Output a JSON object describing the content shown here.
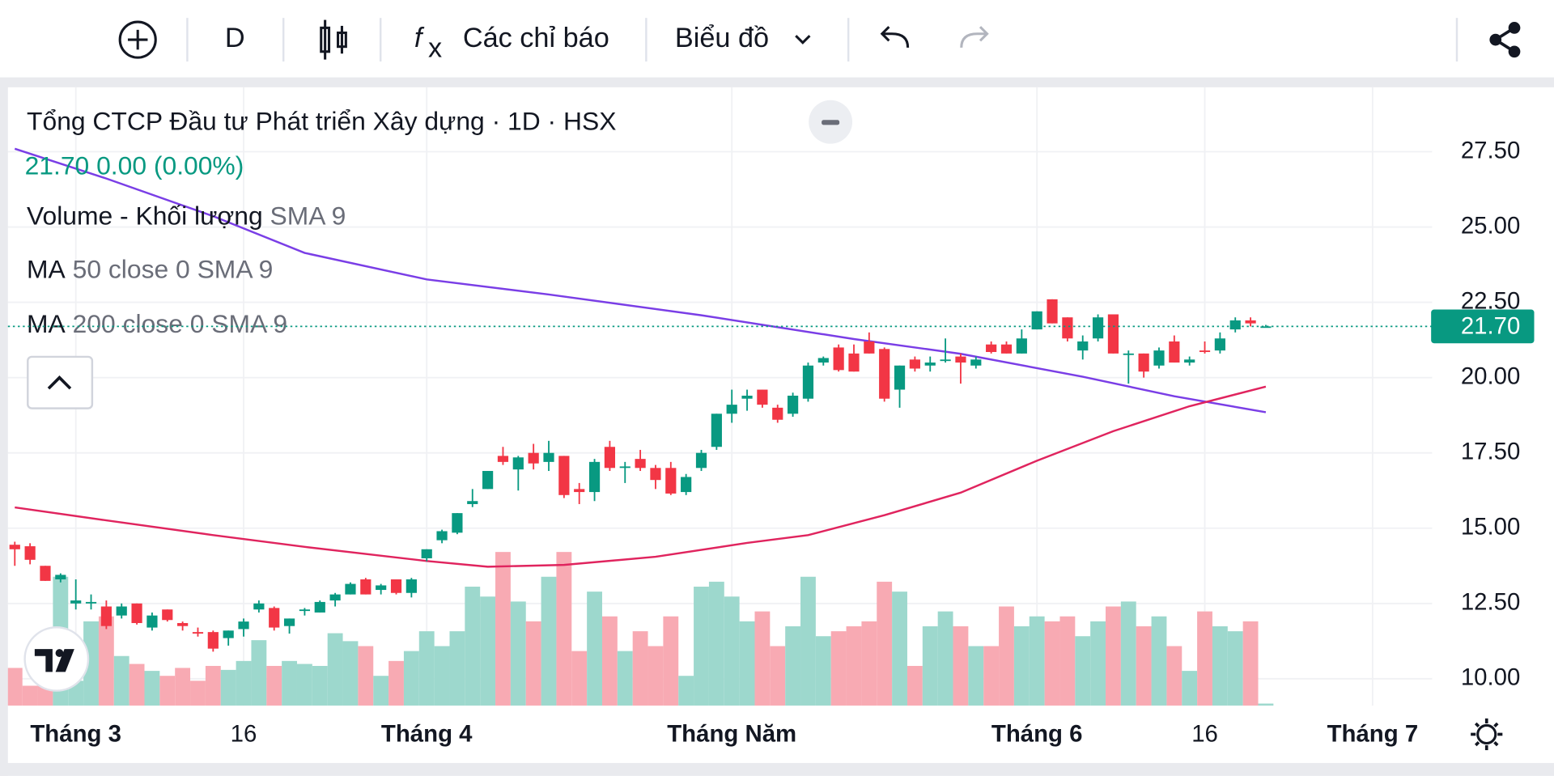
{
  "toolbar": {
    "interval": "D",
    "indicators": "Các chỉ báo",
    "chart_menu": "Biểu đồ"
  },
  "chart_data": {
    "type": "candlestick",
    "title": "Tổng CTCP Đầu tư Phát triển Xây dựng · 1D · HSX",
    "status": "21.70 0.00 (0.00%)",
    "legend_items": [
      {
        "name": "Volume - Khối lượng",
        "params": "SMA 9"
      },
      {
        "name": "MA",
        "params": "50 close 0 SMA 9"
      },
      {
        "name": "MA",
        "params": "200 close 0 SMA 9"
      }
    ],
    "up_color": "#089981",
    "down_color": "#f23645",
    "ohlc": [
      [
        14.45,
        14.55,
        13.75,
        14.3
      ],
      [
        14.4,
        14.5,
        13.8,
        13.95
      ],
      [
        13.75,
        13.75,
        13.25,
        13.25
      ],
      [
        13.3,
        13.5,
        13.2,
        13.45
      ],
      [
        12.5,
        13.3,
        12.3,
        12.6
      ],
      [
        12.5,
        12.8,
        12.3,
        12.55
      ],
      [
        12.4,
        12.6,
        11.65,
        11.75
      ],
      [
        12.1,
        12.5,
        12.0,
        12.4
      ],
      [
        12.5,
        12.5,
        11.8,
        11.85
      ],
      [
        11.7,
        12.2,
        11.6,
        12.1
      ],
      [
        12.3,
        12.3,
        11.9,
        11.95
      ],
      [
        11.85,
        11.9,
        11.6,
        11.75
      ],
      [
        11.55,
        11.7,
        11.4,
        11.5
      ],
      [
        11.55,
        11.6,
        10.9,
        11.0
      ],
      [
        11.35,
        11.6,
        11.1,
        11.6
      ],
      [
        11.65,
        12.0,
        11.4,
        11.9
      ],
      [
        12.3,
        12.6,
        12.2,
        12.5
      ],
      [
        12.35,
        12.4,
        11.6,
        11.7
      ],
      [
        11.75,
        12.0,
        11.5,
        12.0
      ],
      [
        12.25,
        12.35,
        12.1,
        12.3
      ],
      [
        12.2,
        12.6,
        12.2,
        12.55
      ],
      [
        12.6,
        12.85,
        12.4,
        12.8
      ],
      [
        12.8,
        13.2,
        12.8,
        13.15
      ],
      [
        13.3,
        13.35,
        12.8,
        12.8
      ],
      [
        12.95,
        13.15,
        12.8,
        13.1
      ],
      [
        13.3,
        13.3,
        12.8,
        12.85
      ],
      [
        12.85,
        13.35,
        12.7,
        13.3
      ],
      [
        14.0,
        14.3,
        13.9,
        14.3
      ],
      [
        14.6,
        14.95,
        14.5,
        14.9
      ],
      [
        14.85,
        15.5,
        14.8,
        15.5
      ],
      [
        15.8,
        16.3,
        15.7,
        15.9
      ],
      [
        16.3,
        16.9,
        16.3,
        16.9
      ],
      [
        17.4,
        17.7,
        17.1,
        17.2
      ],
      [
        16.95,
        17.4,
        16.25,
        17.35
      ],
      [
        17.5,
        17.8,
        16.95,
        17.15
      ],
      [
        17.2,
        17.9,
        16.9,
        17.5
      ],
      [
        17.4,
        17.4,
        16.0,
        16.1
      ],
      [
        16.3,
        16.5,
        15.8,
        16.2
      ],
      [
        16.2,
        17.3,
        15.9,
        17.2
      ],
      [
        17.7,
        17.9,
        16.9,
        17.0
      ],
      [
        17.0,
        17.2,
        16.5,
        17.05
      ],
      [
        17.3,
        17.6,
        16.9,
        17.0
      ],
      [
        17.0,
        17.1,
        16.3,
        16.6
      ],
      [
        17.0,
        17.2,
        16.1,
        16.15
      ],
      [
        16.2,
        16.8,
        16.1,
        16.7
      ],
      [
        17.0,
        17.6,
        16.9,
        17.5
      ],
      [
        17.7,
        18.8,
        17.6,
        18.8
      ],
      [
        18.8,
        19.6,
        18.5,
        19.1
      ],
      [
        19.3,
        19.6,
        18.9,
        19.4
      ],
      [
        19.6,
        19.6,
        19.0,
        19.1
      ],
      [
        19.0,
        19.1,
        18.5,
        18.6
      ],
      [
        18.8,
        19.5,
        18.7,
        19.4
      ],
      [
        19.3,
        20.5,
        19.2,
        20.4
      ],
      [
        20.5,
        20.7,
        20.4,
        20.65
      ],
      [
        21.0,
        21.1,
        20.2,
        20.25
      ],
      [
        20.8,
        21.1,
        20.2,
        20.2
      ],
      [
        21.2,
        21.5,
        20.8,
        20.8
      ],
      [
        20.95,
        21.0,
        19.2,
        19.3
      ],
      [
        19.6,
        20.4,
        19.0,
        20.4
      ],
      [
        20.6,
        20.7,
        20.2,
        20.3
      ],
      [
        20.4,
        20.7,
        20.2,
        20.5
      ],
      [
        20.6,
        21.3,
        20.5,
        20.6
      ],
      [
        20.7,
        20.8,
        19.8,
        20.5
      ],
      [
        20.4,
        20.7,
        20.3,
        20.6
      ],
      [
        21.1,
        21.2,
        20.8,
        20.85
      ],
      [
        21.1,
        21.2,
        20.8,
        20.8
      ],
      [
        20.8,
        21.6,
        20.8,
        21.3
      ],
      [
        21.6,
        22.2,
        21.6,
        22.2
      ],
      [
        22.6,
        22.6,
        21.8,
        21.8
      ],
      [
        22.0,
        22.0,
        21.2,
        21.3
      ],
      [
        20.9,
        21.4,
        20.6,
        21.2
      ],
      [
        21.3,
        22.1,
        21.2,
        22.0
      ],
      [
        22.1,
        22.1,
        20.8,
        20.8
      ],
      [
        20.8,
        20.9,
        19.8,
        20.8
      ],
      [
        20.8,
        20.8,
        20.0,
        20.2
      ],
      [
        20.4,
        21.0,
        20.3,
        20.9
      ],
      [
        21.2,
        21.4,
        20.5,
        20.5
      ],
      [
        20.5,
        20.7,
        20.4,
        20.6
      ],
      [
        20.9,
        21.2,
        20.8,
        20.85
      ],
      [
        20.9,
        21.5,
        20.8,
        21.3
      ],
      [
        21.6,
        22.0,
        21.5,
        21.9
      ],
      [
        21.9,
        22.0,
        21.7,
        21.8
      ],
      [
        21.7,
        21.75,
        21.7,
        21.7
      ]
    ],
    "volume": [
      38,
      20,
      25,
      130,
      25,
      85,
      90,
      50,
      42,
      35,
      30,
      38,
      25,
      40,
      36,
      45,
      66,
      40,
      45,
      42,
      40,
      73,
      65,
      60,
      30,
      45,
      55,
      75,
      60,
      75,
      120,
      110,
      155,
      105,
      85,
      130,
      155,
      55,
      115,
      90,
      55,
      75,
      60,
      90,
      30,
      120,
      125,
      110,
      85,
      95,
      60,
      80,
      130,
      70,
      75,
      80,
      85,
      125,
      115,
      40,
      80,
      95,
      80,
      60,
      60,
      100,
      80,
      90,
      85,
      90,
      70,
      85,
      100,
      105,
      80,
      90,
      60,
      35,
      95,
      80,
      75,
      85,
      2
    ],
    "volume_colors": {
      "up": "#9dd8cd",
      "down": "#f8aab3"
    },
    "series": [
      {
        "color": "#7a3ee6",
        "x": [
          0,
          6,
          13,
          19,
          27,
          35,
          45,
          55,
          62,
          70,
          76,
          82
        ],
        "values": [
          27.6,
          26.61,
          25.36,
          24.14,
          23.26,
          22.76,
          22.07,
          21.28,
          20.79,
          20.03,
          19.38,
          18.85
        ]
      },
      {
        "color": "#e0245e",
        "x": [
          0,
          6,
          13,
          19,
          27,
          31,
          36,
          42,
          48,
          52,
          57,
          62,
          67,
          72,
          77,
          82
        ],
        "values": [
          15.69,
          15.26,
          14.77,
          14.38,
          13.91,
          13.72,
          13.78,
          14.05,
          14.51,
          14.77,
          15.43,
          16.18,
          17.24,
          18.22,
          19.05,
          19.7
        ]
      }
    ],
    "last_price": {
      "value": 21.7,
      "label": "21.70"
    },
    "xlim": [
      -0.45,
      92.9
    ],
    "ylim": [
      9.11,
      29.64
    ],
    "yticks": [
      {
        "value": 10,
        "label": "10.00"
      },
      {
        "value": 12.5,
        "label": "12.50"
      },
      {
        "value": 15,
        "label": "15.00"
      },
      {
        "value": 17.5,
        "label": "17.50"
      },
      {
        "value": 20,
        "label": "20.00"
      },
      {
        "value": 22.5,
        "label": "22.50"
      },
      {
        "value": 25,
        "label": "25.00"
      },
      {
        "value": 27.5,
        "label": "27.50"
      }
    ],
    "xticks": [
      {
        "value": 4,
        "label": "Tháng 3"
      },
      {
        "value": 15,
        "label": "16"
      },
      {
        "value": 27,
        "label": "Tháng 4"
      },
      {
        "value": 47,
        "label": "Tháng Năm"
      },
      {
        "value": 67,
        "label": "Tháng 6"
      },
      {
        "value": 78,
        "label": "16"
      },
      {
        "value": 89,
        "label": "Tháng 7"
      }
    ],
    "grid": true
  }
}
